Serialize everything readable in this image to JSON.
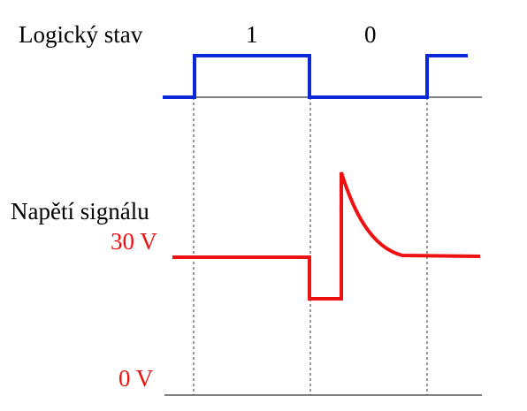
{
  "labels": {
    "logic_state": "Logický stav",
    "state_one": "1",
    "state_zero": "0",
    "signal_voltage": "Napětí signálu",
    "voltage_30": "30 V",
    "voltage_0": "0 V"
  },
  "colors": {
    "logic_trace": "#0a28d8",
    "signal_trace": "#ee1111",
    "axis": "#333333",
    "guide": "#333333",
    "text": "#000000",
    "voltage_label": "#ee1111"
  }
}
